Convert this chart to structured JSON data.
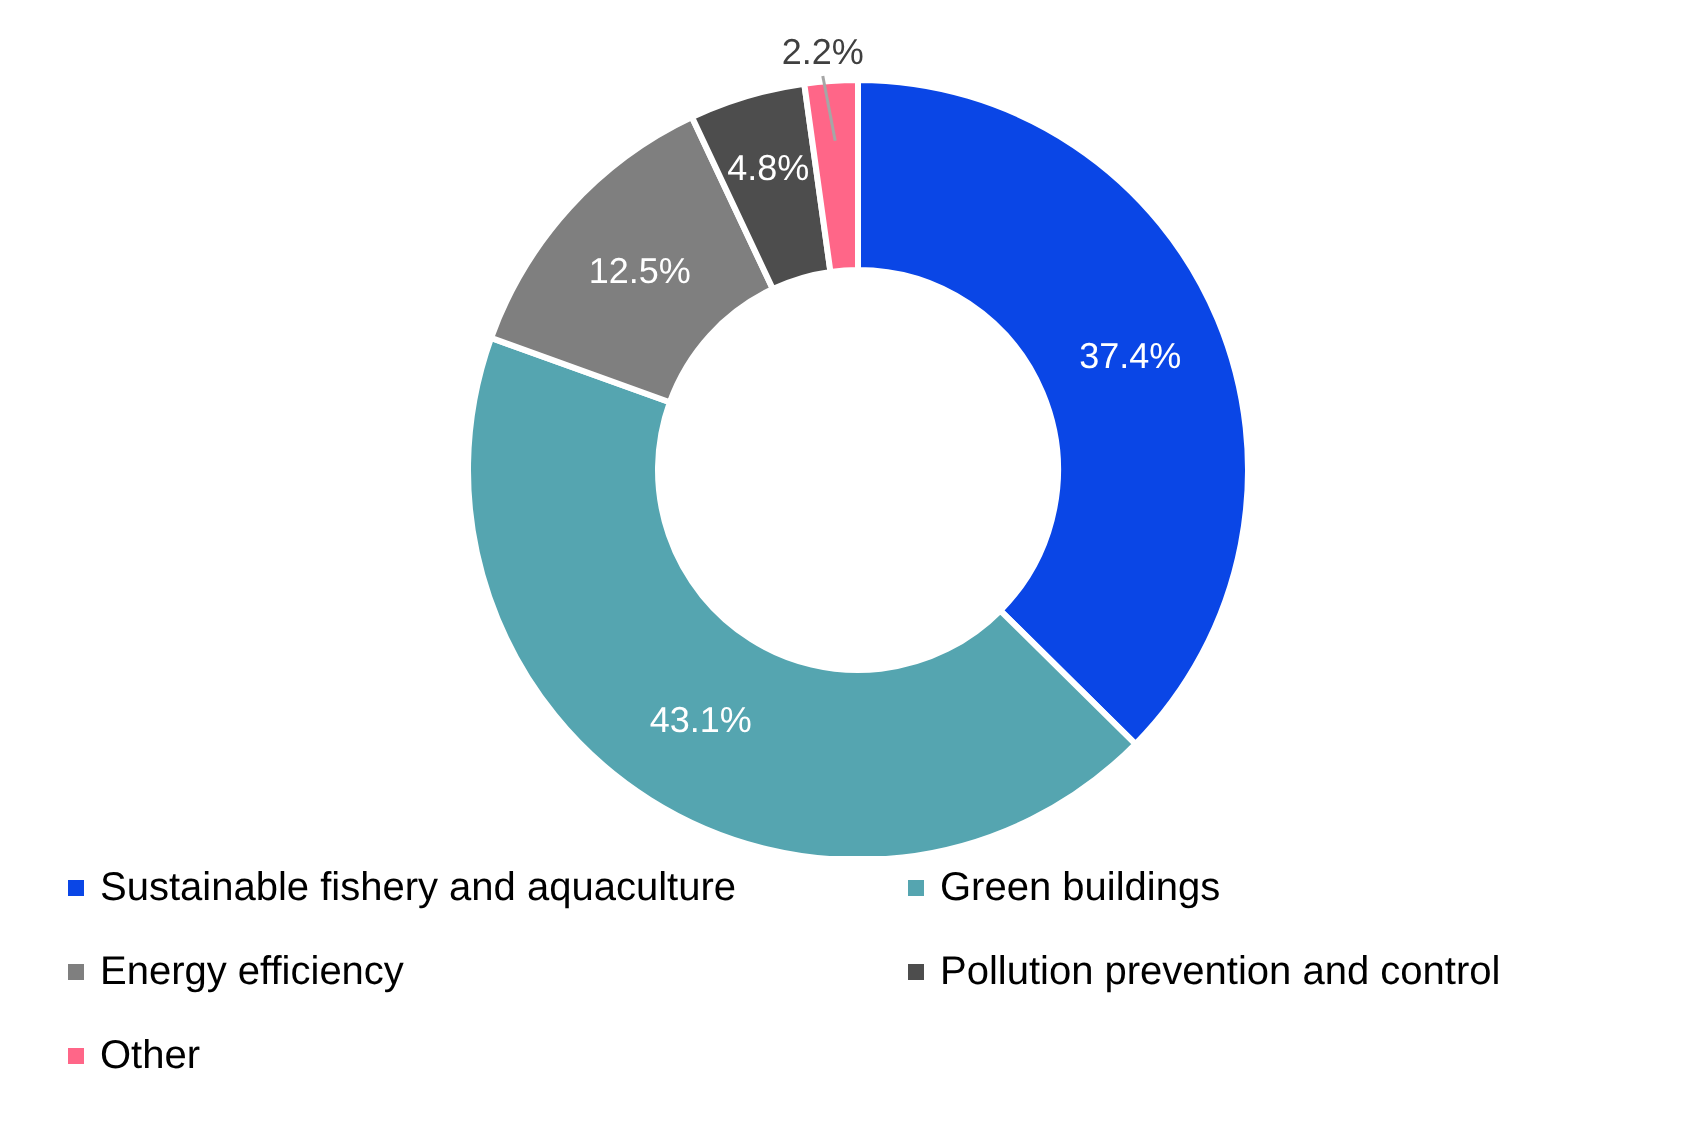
{
  "chart_data": {
    "type": "donut",
    "categories": [
      "Sustainable fishery and aquaculture",
      "Green buildings",
      "Energy efficiency",
      "Pollution prevention and control",
      "Other"
    ],
    "values": [
      37.4,
      43.1,
      12.5,
      4.8,
      2.2
    ],
    "value_labels": [
      "37.4%",
      "43.1%",
      "12.5%",
      "4.8%",
      "2.2%"
    ],
    "colors": [
      "#0a46e6",
      "#55a5b0",
      "#7f7f7f",
      "#4d4d4d",
      "#ff6688"
    ],
    "legend": "bottom"
  }
}
